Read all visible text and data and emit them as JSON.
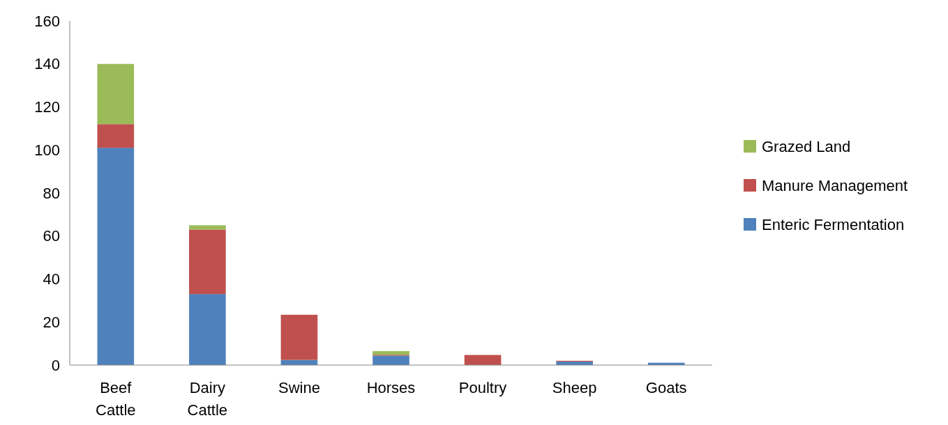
{
  "chart_data": {
    "type": "bar",
    "stacked": true,
    "categories": [
      "Beef Cattle",
      "Dairy Cattle",
      "Swine",
      "Horses",
      "Poultry",
      "Sheep",
      "Goats"
    ],
    "series": [
      {
        "name": "Enteric Fermentation",
        "color": "#4f81bd",
        "values": [
          101,
          33,
          2.4,
          4.4,
          0,
          1.6,
          1.1
        ]
      },
      {
        "name": "Manure Management",
        "color": "#c0504d",
        "values": [
          11,
          30,
          21,
          0.4,
          4.7,
          0.4,
          0
        ]
      },
      {
        "name": "Grazed Land",
        "color": "#9bbb59",
        "values": [
          28,
          2,
          0,
          1.7,
          0,
          0,
          0
        ]
      }
    ],
    "ylim": [
      0,
      160
    ],
    "yticks": [
      0,
      20,
      40,
      60,
      80,
      100,
      120,
      140,
      160
    ],
    "grid": false,
    "legend": "right"
  }
}
